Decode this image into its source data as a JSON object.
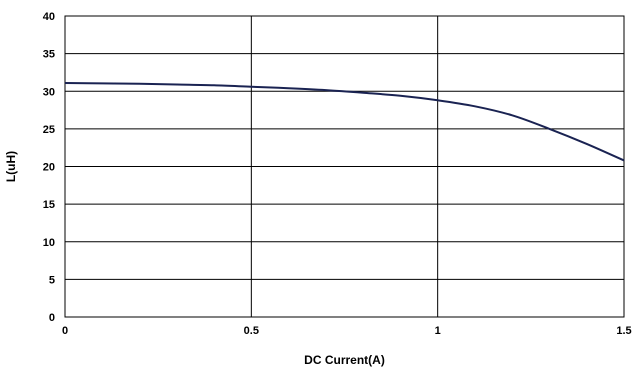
{
  "chart_data": {
    "type": "line",
    "title": "",
    "xlabel": "DC Current(A)",
    "ylabel": "L(uH)",
    "xlim": [
      0,
      1.5
    ],
    "ylim": [
      0,
      40
    ],
    "xticks": [
      0,
      0.5,
      1,
      1.5
    ],
    "xtick_labels": [
      "0",
      "0.5",
      "1",
      "1.5"
    ],
    "yticks": [
      0,
      5,
      10,
      15,
      20,
      25,
      30,
      35,
      40
    ],
    "ytick_labels": [
      "0",
      "5",
      "10",
      "15",
      "20",
      "25",
      "30",
      "35",
      "40"
    ],
    "grid": {
      "horizontal": true,
      "vertical": true
    },
    "legend": "none",
    "series": [
      {
        "color": "#1a2352",
        "x": [
          0,
          0.1,
          0.2,
          0.3,
          0.4,
          0.5,
          0.6,
          0.7,
          0.8,
          0.9,
          1.0,
          1.1,
          1.2,
          1.3,
          1.4,
          1.5
        ],
        "y": [
          31.1,
          31.05,
          31.0,
          30.9,
          30.8,
          30.6,
          30.4,
          30.15,
          29.8,
          29.4,
          28.8,
          28.0,
          26.8,
          25.0,
          23.0,
          20.8
        ]
      }
    ]
  }
}
